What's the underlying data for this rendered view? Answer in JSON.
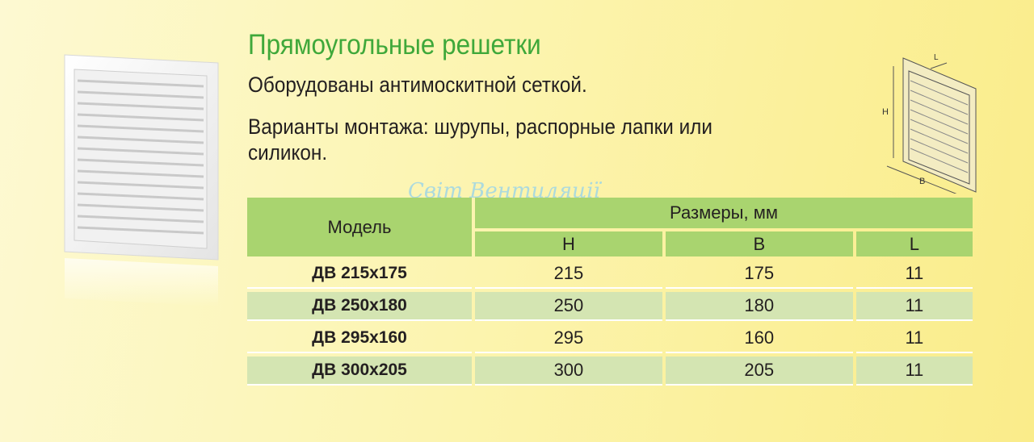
{
  "title": "Прямоугольные решетки",
  "lines": [
    "Оборудованы антимоскитной сеткой.",
    "Варианты монтажа: шурупы, распорные лапки или",
    "силикон."
  ],
  "watermark": "Світ Вентиляції",
  "diagram": {
    "labels": {
      "h": "H",
      "b": "B",
      "l": "L"
    }
  },
  "table": {
    "model_header": "Модель",
    "dims_header": "Размеры, мм",
    "columns": [
      "H",
      "B",
      "L"
    ],
    "rows": [
      {
        "model": "ДВ 215x175",
        "h": "215",
        "b": "175",
        "l": "11"
      },
      {
        "model": "ДВ 250x180",
        "h": "250",
        "b": "180",
        "l": "11"
      },
      {
        "model": "ДВ 295x160",
        "h": "295",
        "b": "160",
        "l": "11"
      },
      {
        "model": "ДВ 300x205",
        "h": "300",
        "b": "205",
        "l": "11"
      }
    ]
  },
  "colors": {
    "title": "#3fa83a",
    "header": "#a9d46f",
    "row_alt": "#d4e5b2"
  }
}
